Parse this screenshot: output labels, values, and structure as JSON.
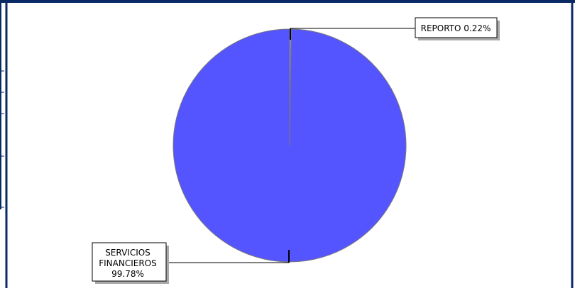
{
  "chart_data": {
    "type": "pie",
    "categories": [
      "REPORTO",
      "SERVICIOS FINANCIEROS"
    ],
    "values": [
      0.22,
      99.78
    ],
    "labels": [
      {
        "lines": [
          "REPORTO 0.22%"
        ]
      },
      {
        "lines": [
          "SERVICIOS",
          "FINANCIEROS",
          "99.78%"
        ]
      }
    ],
    "title": "",
    "legend": "none",
    "colors": {
      "slice_main": "#5555ff",
      "slice_small": "#9999cc",
      "slice_outline": "#777777",
      "frame": "#0a2a66",
      "leader": "#000000",
      "label_shadow": "#aaaaaa"
    }
  }
}
